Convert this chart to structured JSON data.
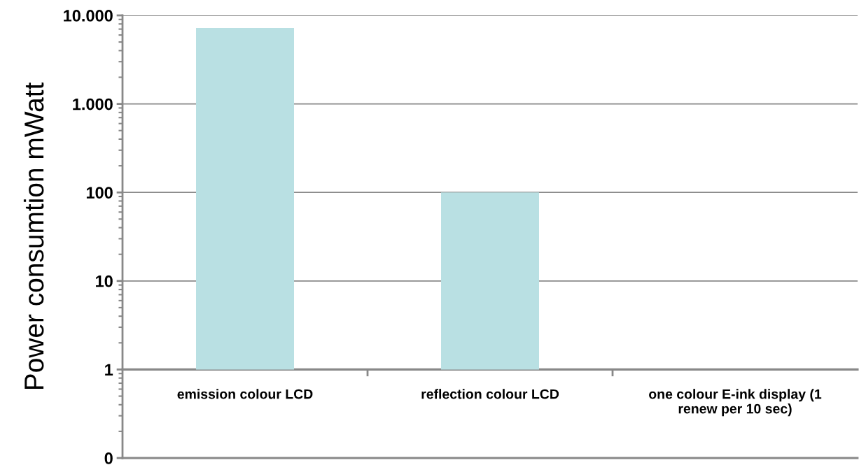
{
  "chart_data": {
    "type": "bar",
    "ylabel": "Power consumtion mWatt",
    "categories": [
      "emission colour LCD",
      "reflection colour LCD",
      "one colour E-ink display (1\nrenew per 10 sec)"
    ],
    "base": [
      1,
      1,
      null
    ],
    "values": [
      7199,
      99,
      null
    ],
    "color": "#b9e0e3",
    "log": "y",
    "ylim": [
      0.1,
      10000
    ],
    "yticks": [
      {
        "value": 0.1,
        "label": "0"
      },
      1,
      10,
      100,
      {
        "value": 1000,
        "label": "1.000"
      },
      {
        "value": 10000,
        "label": "10.000"
      }
    ],
    "grid": "y",
    "legend": false
  }
}
